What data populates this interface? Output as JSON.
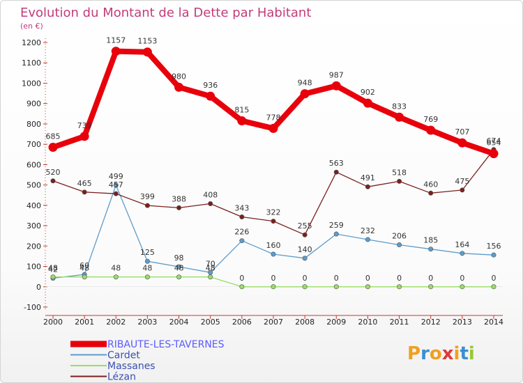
{
  "title": "Evolution du Montant de la Dette par Habitant",
  "unit": "(en €)",
  "logo": {
    "text": "Proxiti",
    "letter_colors": [
      "#f0a020",
      "#3a8fd0",
      "#f0a020",
      "#e03a3a",
      "#f0a020",
      "#3a8fd0",
      "#9ac832"
    ]
  },
  "chart_data": {
    "type": "line",
    "title": "Evolution du Montant de la Dette par Habitant",
    "ylabel": "(en €)",
    "xlabel": "",
    "ylim": [
      -100,
      1200
    ],
    "ytick_step": 100,
    "grid": false,
    "legend_position": "bottom-left",
    "x": [
      "2000",
      "2001",
      "2002",
      "2003",
      "2004",
      "2005",
      "2006",
      "2007",
      "2008",
      "2009",
      "2010",
      "2011",
      "2012",
      "2013",
      "2014"
    ],
    "series": [
      {
        "name": "RIBAUTE-LES-TAVERNES",
        "color": "#e8000b",
        "emphasis": true,
        "values": [
          685,
          739,
          1157,
          1153,
          980,
          936,
          815,
          778,
          948,
          987,
          902,
          833,
          769,
          707,
          654
        ]
      },
      {
        "name": "Cardet",
        "color": "#5c9ccc",
        "values": [
          42,
          60,
          499,
          125,
          98,
          70,
          226,
          160,
          140,
          259,
          232,
          206,
          185,
          164,
          156
        ]
      },
      {
        "name": "Massanes",
        "color": "#99dd66",
        "values": [
          48,
          48,
          48,
          48,
          48,
          48,
          0,
          0,
          0,
          0,
          0,
          0,
          0,
          0,
          0
        ]
      },
      {
        "name": "Lézan",
        "color": "#7a1f1f",
        "values": [
          520,
          465,
          457,
          399,
          388,
          408,
          343,
          322,
          255,
          563,
          491,
          518,
          460,
          475,
          674
        ]
      }
    ]
  }
}
